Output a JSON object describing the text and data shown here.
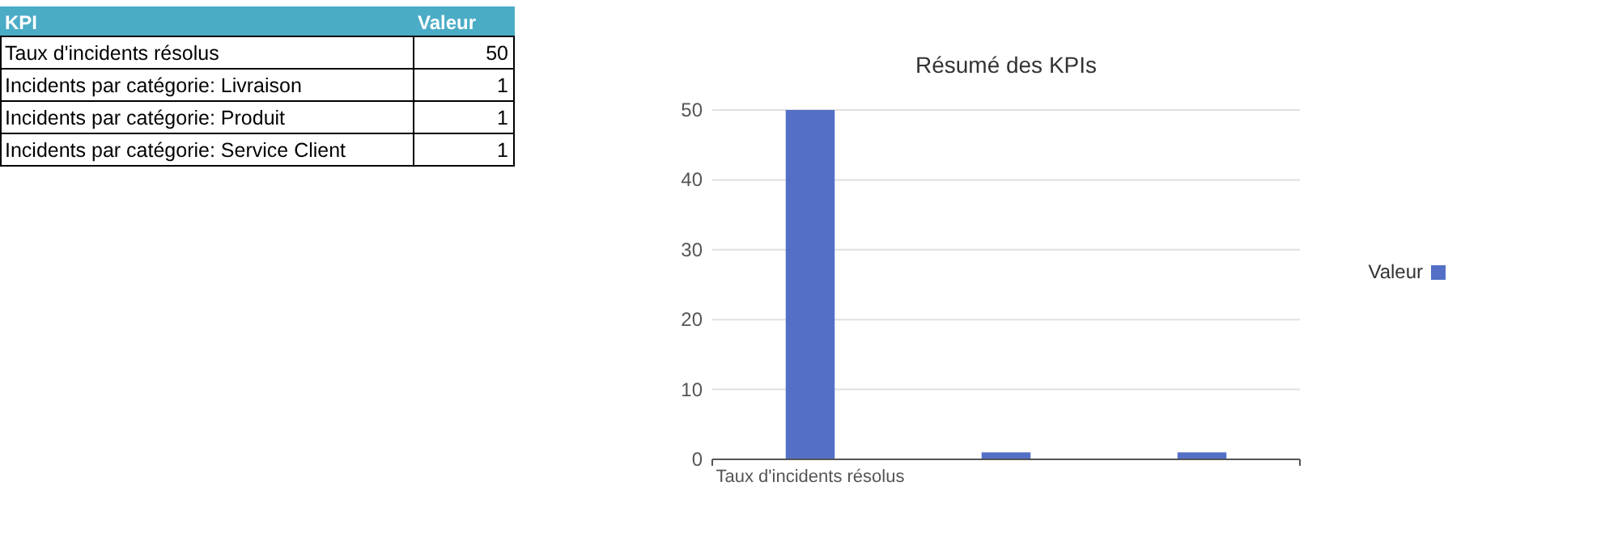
{
  "chart_data": [
    {
      "type": "other",
      "annotations": [
        "KPI",
        "Valeur",
        "Taux d'incidents résolus",
        "50",
        "Incidents par catégorie: Livraison",
        "1",
        "Incidents par catégorie: Produit",
        "1",
        "Incidents par catégorie: Service Client",
        "1"
      ]
    },
    {
      "type": "bar",
      "title": "Résumé des KPIs",
      "categories": [
        "Taux d'incidents résolus",
        null,
        null
      ],
      "series": [
        {
          "name": "Valeur",
          "color": "#5470c6",
          "values": [
            50,
            1,
            1
          ]
        }
      ],
      "ylim": [
        0,
        50
      ],
      "yticks": [
        0,
        10,
        20,
        30,
        40,
        50
      ],
      "grid": "y",
      "legend": "right"
    }
  ]
}
